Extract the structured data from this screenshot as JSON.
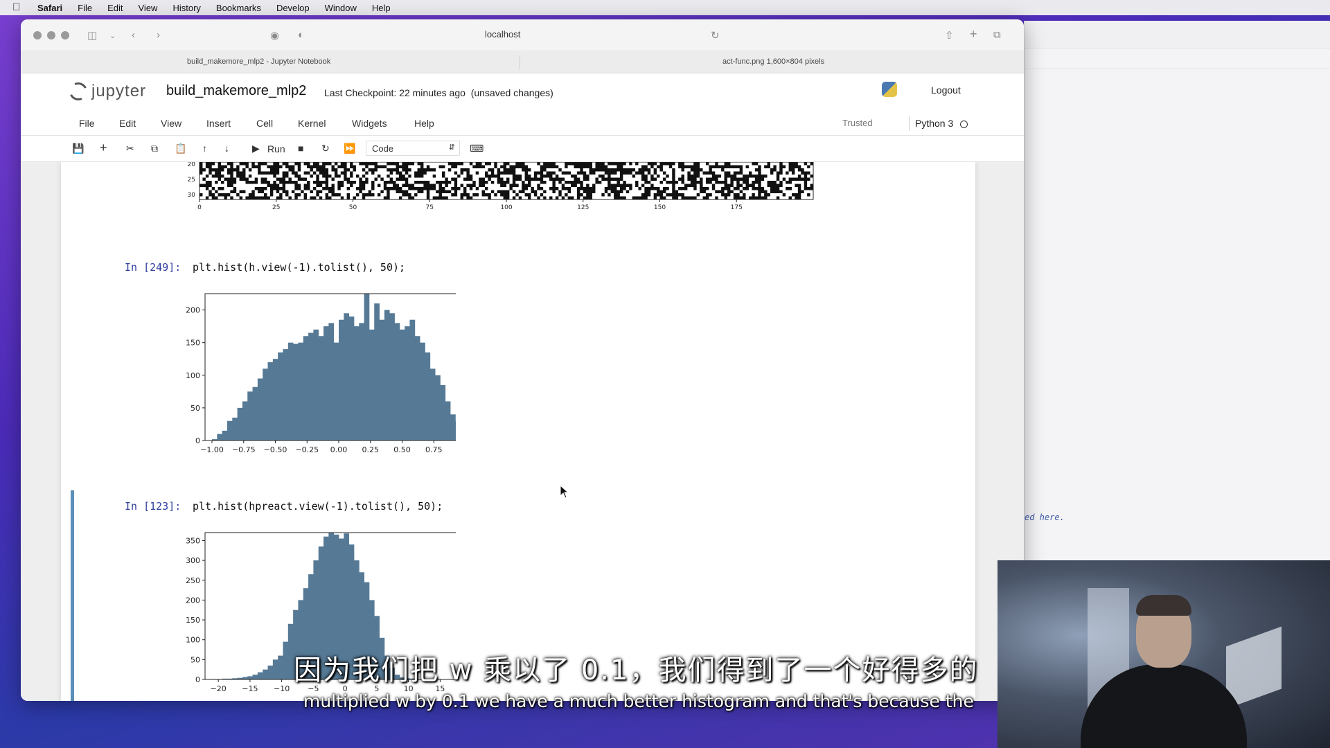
{
  "menubar": {
    "items": [
      "Safari",
      "File",
      "Edit",
      "View",
      "History",
      "Bookmarks",
      "Develop",
      "Window",
      "Help"
    ]
  },
  "safari": {
    "url": "localhost",
    "tabs": [
      {
        "label": "build_makemore_mlp2 - Jupyter Notebook"
      },
      {
        "label": "act-func.png 1,600×804 pixels"
      }
    ]
  },
  "jupyter": {
    "logo_text": "jupyter",
    "notebook_name": "build_makemore_mlp2",
    "checkpoint": "Last Checkpoint: 22 minutes ago",
    "unsaved": "(unsaved changes)",
    "logout": "Logout",
    "menu": [
      "File",
      "Edit",
      "View",
      "Insert",
      "Cell",
      "Kernel",
      "Widgets",
      "Help"
    ],
    "trusted": "Trusted",
    "kernel": "Python 3",
    "toolbar": {
      "run_label": "Run",
      "cell_type": "Code"
    }
  },
  "cells": [
    {
      "prompt": "In [249]:",
      "code": "plt.hist(h.view(-1).tolist(), 50);"
    },
    {
      "prompt": "In [123]:",
      "code": "plt.hist(hpreact.view(-1).tolist(), 50);"
    }
  ],
  "right_window": {
    "code_snippet": "ed here."
  },
  "subtitles": {
    "chinese": "因为我们把 w 乘以了 0.1，我们得到了一个好得多的",
    "english": "multiplied w by 0.1 we have a much better histogram and that's because the"
  },
  "chart_data": [
    {
      "type": "heatmap",
      "description_ticks_only": true,
      "y_ticks": [
        20,
        25,
        30
      ],
      "x_ticks": [
        0,
        25,
        50,
        75,
        100,
        125,
        150,
        175
      ],
      "xlim": [
        0,
        200
      ]
    },
    {
      "type": "bar",
      "x_ticks": [
        "-1.00",
        "-0.75",
        "-0.50",
        "-0.25",
        "0.00",
        "0.25",
        "0.50",
        "0.75",
        "1.00"
      ],
      "y_ticks": [
        0,
        50,
        100,
        150,
        200
      ],
      "xlim": [
        -1.0,
        1.0
      ],
      "ylim": [
        0,
        225
      ],
      "bins": 50,
      "values": [
        2,
        10,
        15,
        30,
        35,
        50,
        60,
        75,
        82,
        95,
        110,
        120,
        125,
        135,
        140,
        150,
        148,
        150,
        160,
        165,
        170,
        160,
        175,
        180,
        150,
        185,
        195,
        190,
        175,
        180,
        225,
        170,
        210,
        185,
        200,
        195,
        180,
        170,
        175,
        185,
        160,
        150,
        135,
        110,
        100,
        85,
        60,
        40,
        30,
        10
      ],
      "color": "#567a96"
    },
    {
      "type": "bar",
      "x_ticks": [
        "-20",
        "-15",
        "-10",
        "-5",
        "0",
        "5",
        "10",
        "15"
      ],
      "y_ticks": [
        0,
        50,
        100,
        150,
        200,
        250,
        300,
        350
      ],
      "xlim": [
        -21,
        19
      ],
      "ylim": [
        0,
        370
      ],
      "bins": 50,
      "values": [
        1,
        1,
        2,
        2,
        3,
        4,
        6,
        8,
        12,
        18,
        25,
        35,
        50,
        60,
        95,
        140,
        175,
        200,
        230,
        265,
        300,
        335,
        360,
        370,
        365,
        355,
        368,
        340,
        300,
        270,
        245,
        200,
        160,
        105,
        60,
        30,
        12,
        5,
        3,
        2,
        1,
        1,
        1,
        0,
        0,
        0,
        0,
        0,
        0,
        0
      ],
      "color": "#567a96"
    }
  ]
}
